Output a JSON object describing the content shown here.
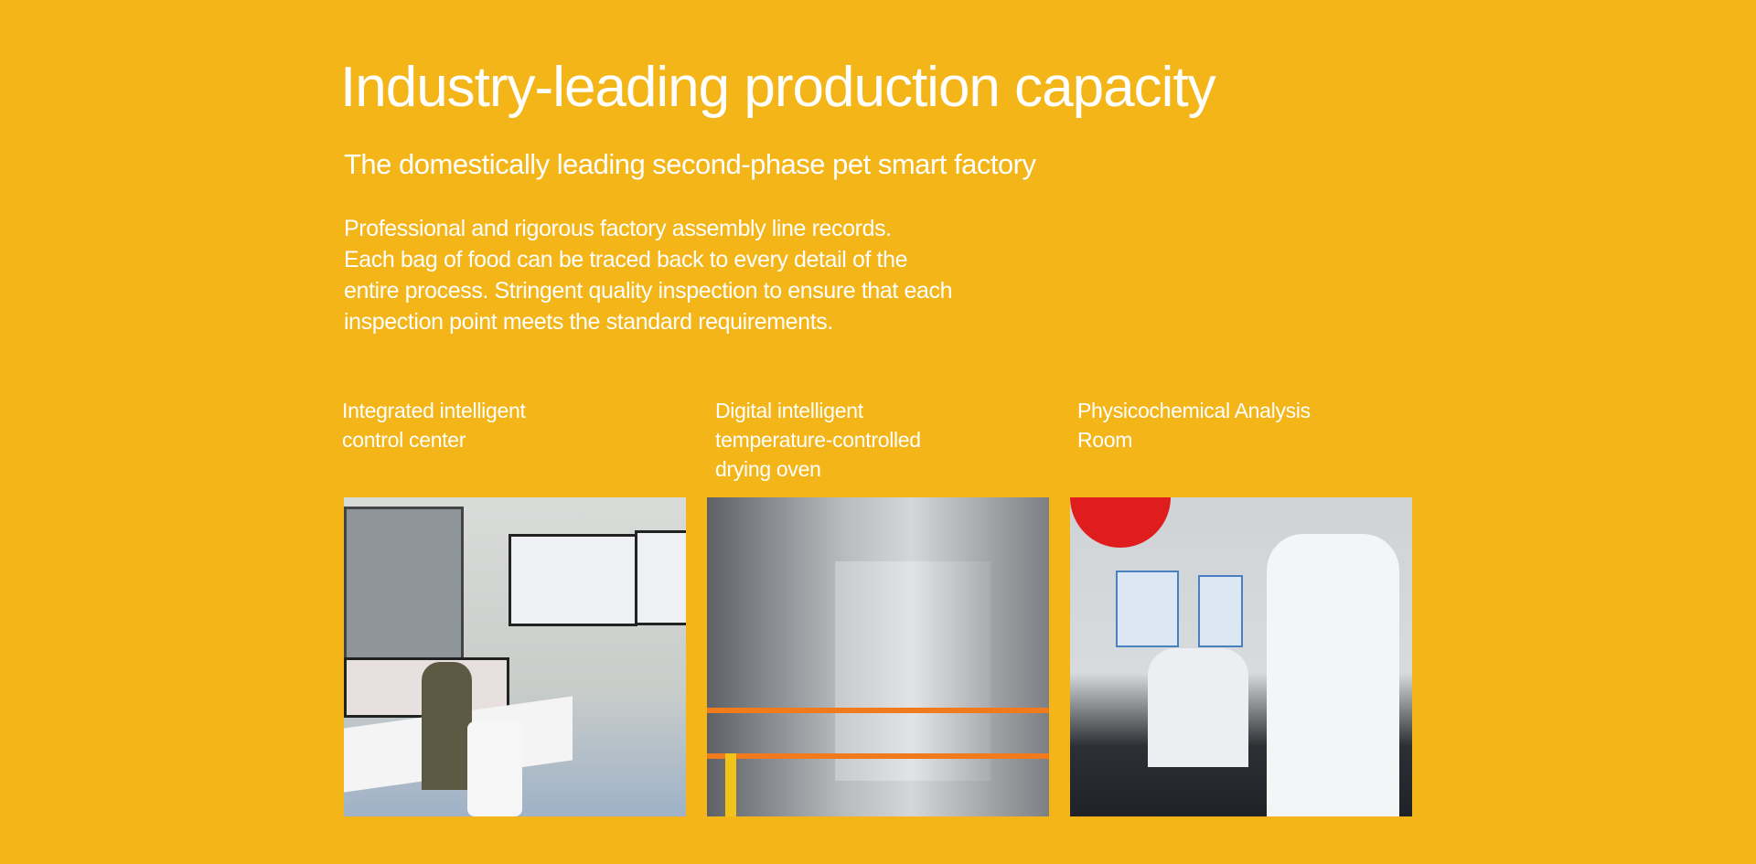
{
  "header": {
    "title": "Industry-leading production capacity",
    "subtitle": "The domestically leading second-phase pet smart factory"
  },
  "description": {
    "lines": [
      "Professional and rigorous factory assembly line records.",
      "Each bag of food can be traced back to every detail of the",
      "entire process. Stringent quality inspection to ensure that each",
      "inspection point meets the standard requirements."
    ]
  },
  "features": [
    {
      "caption_lines": [
        "Integrated intelligent",
        "control center"
      ],
      "image": "control-center-photo"
    },
    {
      "caption_lines": [
        "Digital intelligent",
        "temperature-controlled",
        "drying oven"
      ],
      "image": "drying-oven-photo"
    },
    {
      "caption_lines": [
        "Physicochemical Analysis",
        "Room"
      ],
      "image": "analysis-room-photo"
    }
  ],
  "colors": {
    "background": "#F3B518",
    "text": "#FFFFFF"
  }
}
